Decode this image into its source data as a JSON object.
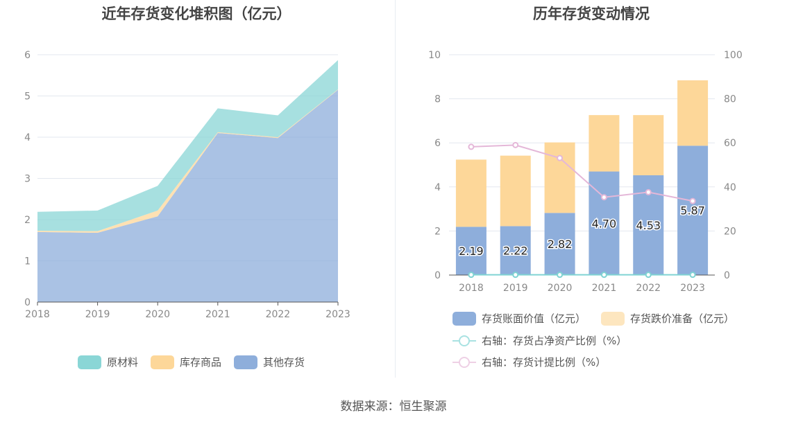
{
  "source_text": "数据来源：恒生聚源",
  "chart_data": [
    {
      "type": "area",
      "title": "近年存货变化堆积图（亿元）",
      "categories": [
        "2018",
        "2019",
        "2020",
        "2021",
        "2022",
        "2023"
      ],
      "y_ticks": [
        "0",
        "1",
        "2",
        "3",
        "4",
        "5",
        "6"
      ],
      "ylim": [
        0,
        6
      ],
      "stacked": true,
      "grid": true,
      "legend_position": "bottom",
      "series": [
        {
          "name": "其他存货",
          "color": "#8eaedb",
          "values": [
            1.7,
            1.68,
            2.08,
            4.1,
            3.98,
            5.15
          ]
        },
        {
          "name": "库存商品",
          "color": "#fdd799",
          "values": [
            0.03,
            0.04,
            0.14,
            0.02,
            0.02,
            0.01
          ]
        },
        {
          "name": "原材料",
          "color": "#8ad6d6",
          "values": [
            0.46,
            0.5,
            0.6,
            0.58,
            0.53,
            0.71
          ]
        }
      ],
      "legend_order": [
        "原材料",
        "库存商品",
        "其他存货"
      ]
    },
    {
      "type": "bar",
      "title": "历年存货变动情况",
      "categories": [
        "2018",
        "2019",
        "2020",
        "2021",
        "2022",
        "2023"
      ],
      "y_left_ticks": [
        "0",
        "2",
        "4",
        "6",
        "8",
        "10"
      ],
      "y_right_ticks": [
        "0",
        "20",
        "40",
        "60",
        "80",
        "100"
      ],
      "ylim_left": [
        0,
        10
      ],
      "ylim_right": [
        0,
        100
      ],
      "stacked": true,
      "grid": true,
      "legend_position": "bottom",
      "series": [
        {
          "name": "存货账面价值（亿元）",
          "color": "#8eaedb",
          "values": [
            2.19,
            2.22,
            2.82,
            4.7,
            4.53,
            5.87
          ],
          "labels": [
            "2.19",
            "2.22",
            "2.82",
            "4.70",
            "4.53",
            "5.87"
          ]
        },
        {
          "name": "存货跌价准备（亿元）",
          "color": "#fdd799",
          "values": [
            3.05,
            3.2,
            3.2,
            2.56,
            2.73,
            2.97
          ]
        }
      ],
      "line_series": [
        {
          "name": "右轴：存货占净资产比例（%）",
          "color": "#7fd3d3",
          "values": [
            0.1,
            0.1,
            0.1,
            0.1,
            0.1,
            0.1
          ]
        },
        {
          "name": "右轴：存货计提比例（%）",
          "color": "#e4b7d8",
          "values": [
            58.2,
            59.0,
            53.1,
            35.3,
            37.6,
            33.6
          ]
        }
      ]
    }
  ]
}
